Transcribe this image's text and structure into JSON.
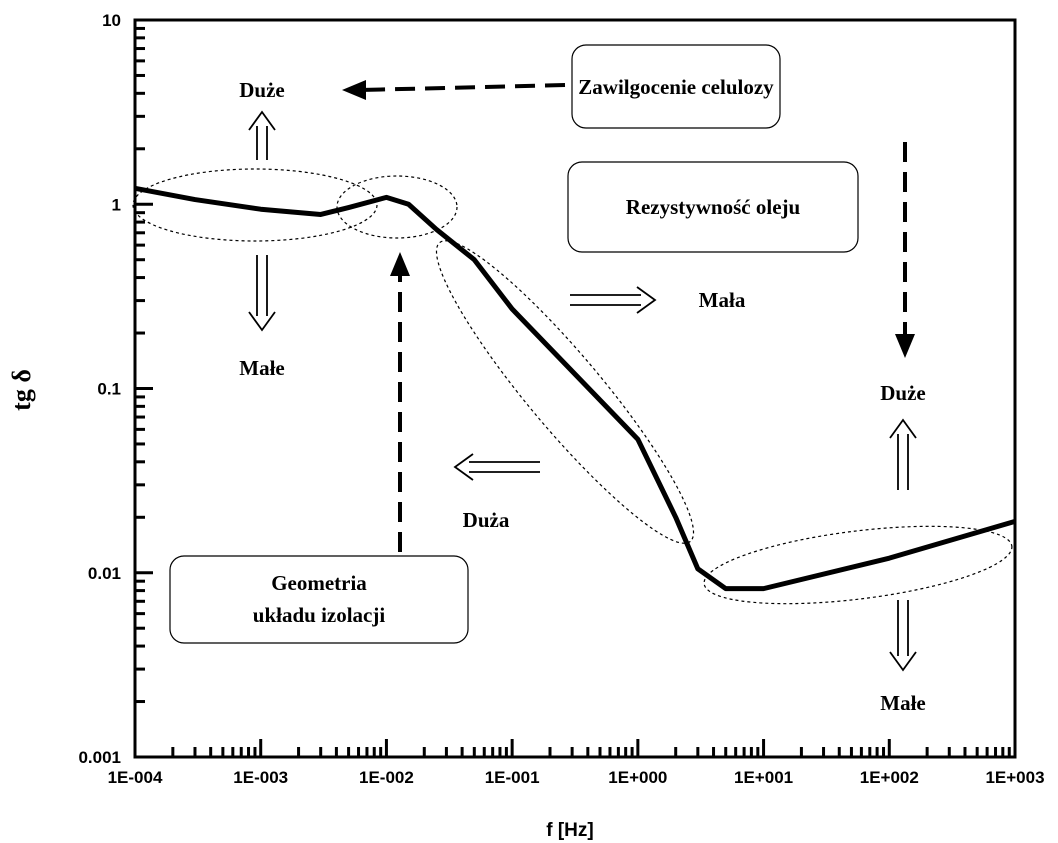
{
  "chart_data": {
    "type": "line",
    "xlabel": "f [Hz]",
    "ylabel": "tg δ",
    "x": [
      0.0001,
      0.0003,
      0.001,
      0.003,
      0.005,
      0.01,
      0.015,
      0.025,
      0.05,
      0.1,
      1,
      2,
      3,
      5,
      10,
      100,
      1000
    ],
    "series": [
      {
        "color": "#000000",
        "values": [
          1.22,
          1.06,
          0.94,
          0.88,
          0.96,
          1.09,
          1.0,
          0.73,
          0.5,
          0.27,
          0.053,
          0.02,
          0.0105,
          0.0082,
          0.0082,
          0.012,
          0.019
        ]
      }
    ],
    "xlim": [
      0.0001,
      1000
    ],
    "ylim": [
      0.001,
      10
    ],
    "log_x": true,
    "log_y": true,
    "xticks": [
      {
        "value": 0.0001,
        "label": "1E-004"
      },
      {
        "value": 0.001,
        "label": "1E-003"
      },
      {
        "value": 0.01,
        "label": "1E-002"
      },
      {
        "value": 0.1,
        "label": "1E-001"
      },
      {
        "value": 1,
        "label": "1E+000"
      },
      {
        "value": 10,
        "label": "1E+001"
      },
      {
        "value": 100,
        "label": "1E+002"
      },
      {
        "value": 1000,
        "label": "1E+003"
      }
    ],
    "yticks": [
      10,
      1,
      0.1,
      0.01,
      0.001
    ],
    "boxes": [
      "Zawilgocenie celulozy",
      "Rezystywność oleju",
      [
        "Geometria",
        "układu izolacji"
      ]
    ],
    "annotations": [
      "Duże",
      "Małe",
      "Mała",
      "Duża",
      "Duże",
      "Małe"
    ]
  }
}
